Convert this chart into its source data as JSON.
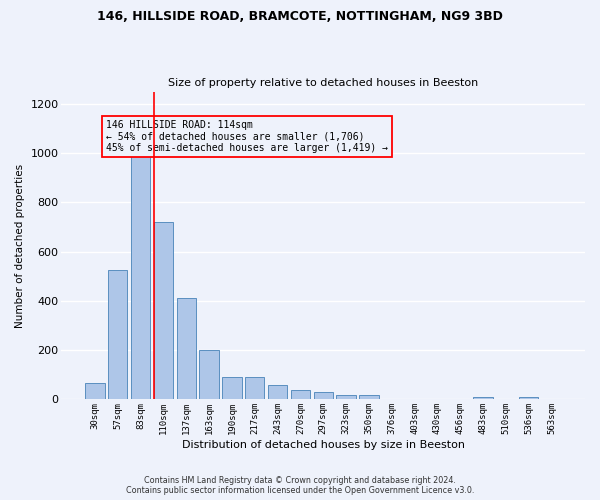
{
  "title1": "146, HILLSIDE ROAD, BRAMCOTE, NOTTINGHAM, NG9 3BD",
  "title2": "Size of property relative to detached houses in Beeston",
  "xlabel": "Distribution of detached houses by size in Beeston",
  "ylabel": "Number of detached properties",
  "categories": [
    "30sqm",
    "57sqm",
    "83sqm",
    "110sqm",
    "137sqm",
    "163sqm",
    "190sqm",
    "217sqm",
    "243sqm",
    "270sqm",
    "297sqm",
    "323sqm",
    "350sqm",
    "376sqm",
    "403sqm",
    "430sqm",
    "456sqm",
    "483sqm",
    "510sqm",
    "536sqm",
    "563sqm"
  ],
  "values": [
    65,
    525,
    1000,
    720,
    410,
    200,
    90,
    90,
    60,
    40,
    30,
    18,
    18,
    0,
    0,
    0,
    0,
    10,
    0,
    10,
    0
  ],
  "bar_color": "#aec6e8",
  "bar_edge_color": "#5a8fc0",
  "annotation_line1": "146 HILLSIDE ROAD: 114sqm",
  "annotation_line2": "← 54% of detached houses are smaller (1,706)",
  "annotation_line3": "45% of semi-detached houses are larger (1,419) →",
  "footer1": "Contains HM Land Registry data © Crown copyright and database right 2024.",
  "footer2": "Contains public sector information licensed under the Open Government Licence v3.0.",
  "ylim": [
    0,
    1250
  ],
  "yticks": [
    0,
    200,
    400,
    600,
    800,
    1000,
    1200
  ],
  "background_color": "#eef2fb",
  "grid_color": "#ffffff",
  "red_line_index": 3
}
